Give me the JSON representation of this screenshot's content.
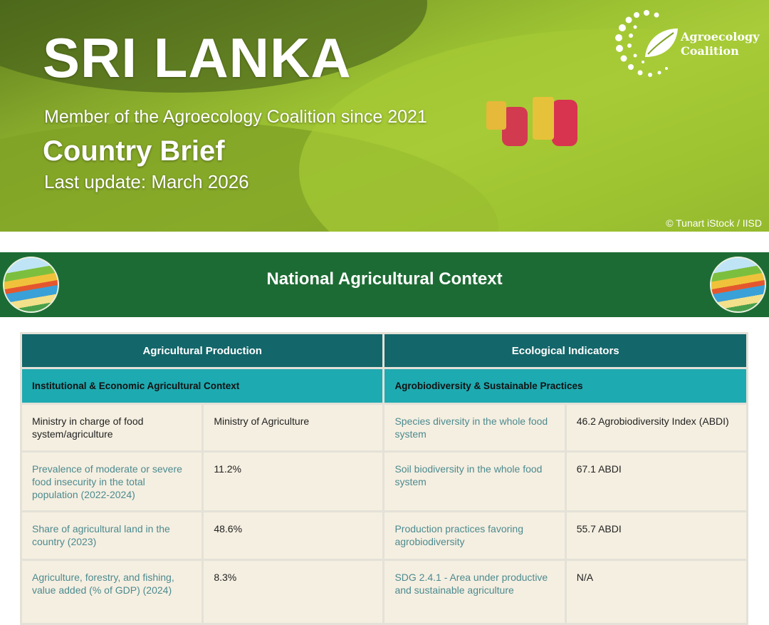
{
  "banner": {
    "title": "SRI LANKA",
    "member_since": "Member of the Agroecology Coalition since 2021",
    "doc_type": "Country Brief",
    "last_update": "Last update: March 2026",
    "photo_credit": "© Tunart iStock / IISD",
    "logo_text_line1": "Agroecology",
    "logo_text_line2": "Coalition"
  },
  "section": {
    "title": "National Agricultural Context"
  },
  "colors": {
    "band": "#1d6b34",
    "header_dark": "#13666a",
    "header_teal": "#1eaab1",
    "cell_bg": "#f5efe1",
    "label_text": "#4c8a8f"
  },
  "table": {
    "left": {
      "header": "Agricultural Production",
      "subheader": "Institutional & Economic Agricultural Context",
      "rows": [
        {
          "label": "Ministry in charge of food system/agriculture",
          "value": "Ministry of Agriculture"
        },
        {
          "label": "Prevalence of moderate or severe food insecurity in the total population (2022-2024)",
          "value": "11.2%"
        },
        {
          "label": "Share of agricultural land in the country (2023)",
          "value": "48.6%"
        },
        {
          "label": "Agriculture, forestry, and fishing, value added (% of GDP) (2024)",
          "value": "8.3%"
        }
      ]
    },
    "right": {
      "header": "Ecological Indicators",
      "subheader": "Agrobiodiversity & Sustainable Practices",
      "rows": [
        {
          "label": "Species diversity in the whole food system",
          "value": "46.2  Agrobiodiversity Index (ABDI)"
        },
        {
          "label": "Soil biodiversity in the whole food system",
          "value": "67.1 ABDI"
        },
        {
          "label": "Production practices favoring agrobiodiversity",
          "value": "55.7 ABDI"
        },
        {
          "label": "SDG 2.4.1 - Area under productive and sustainable agriculture",
          "value": "N/A"
        }
      ]
    }
  }
}
